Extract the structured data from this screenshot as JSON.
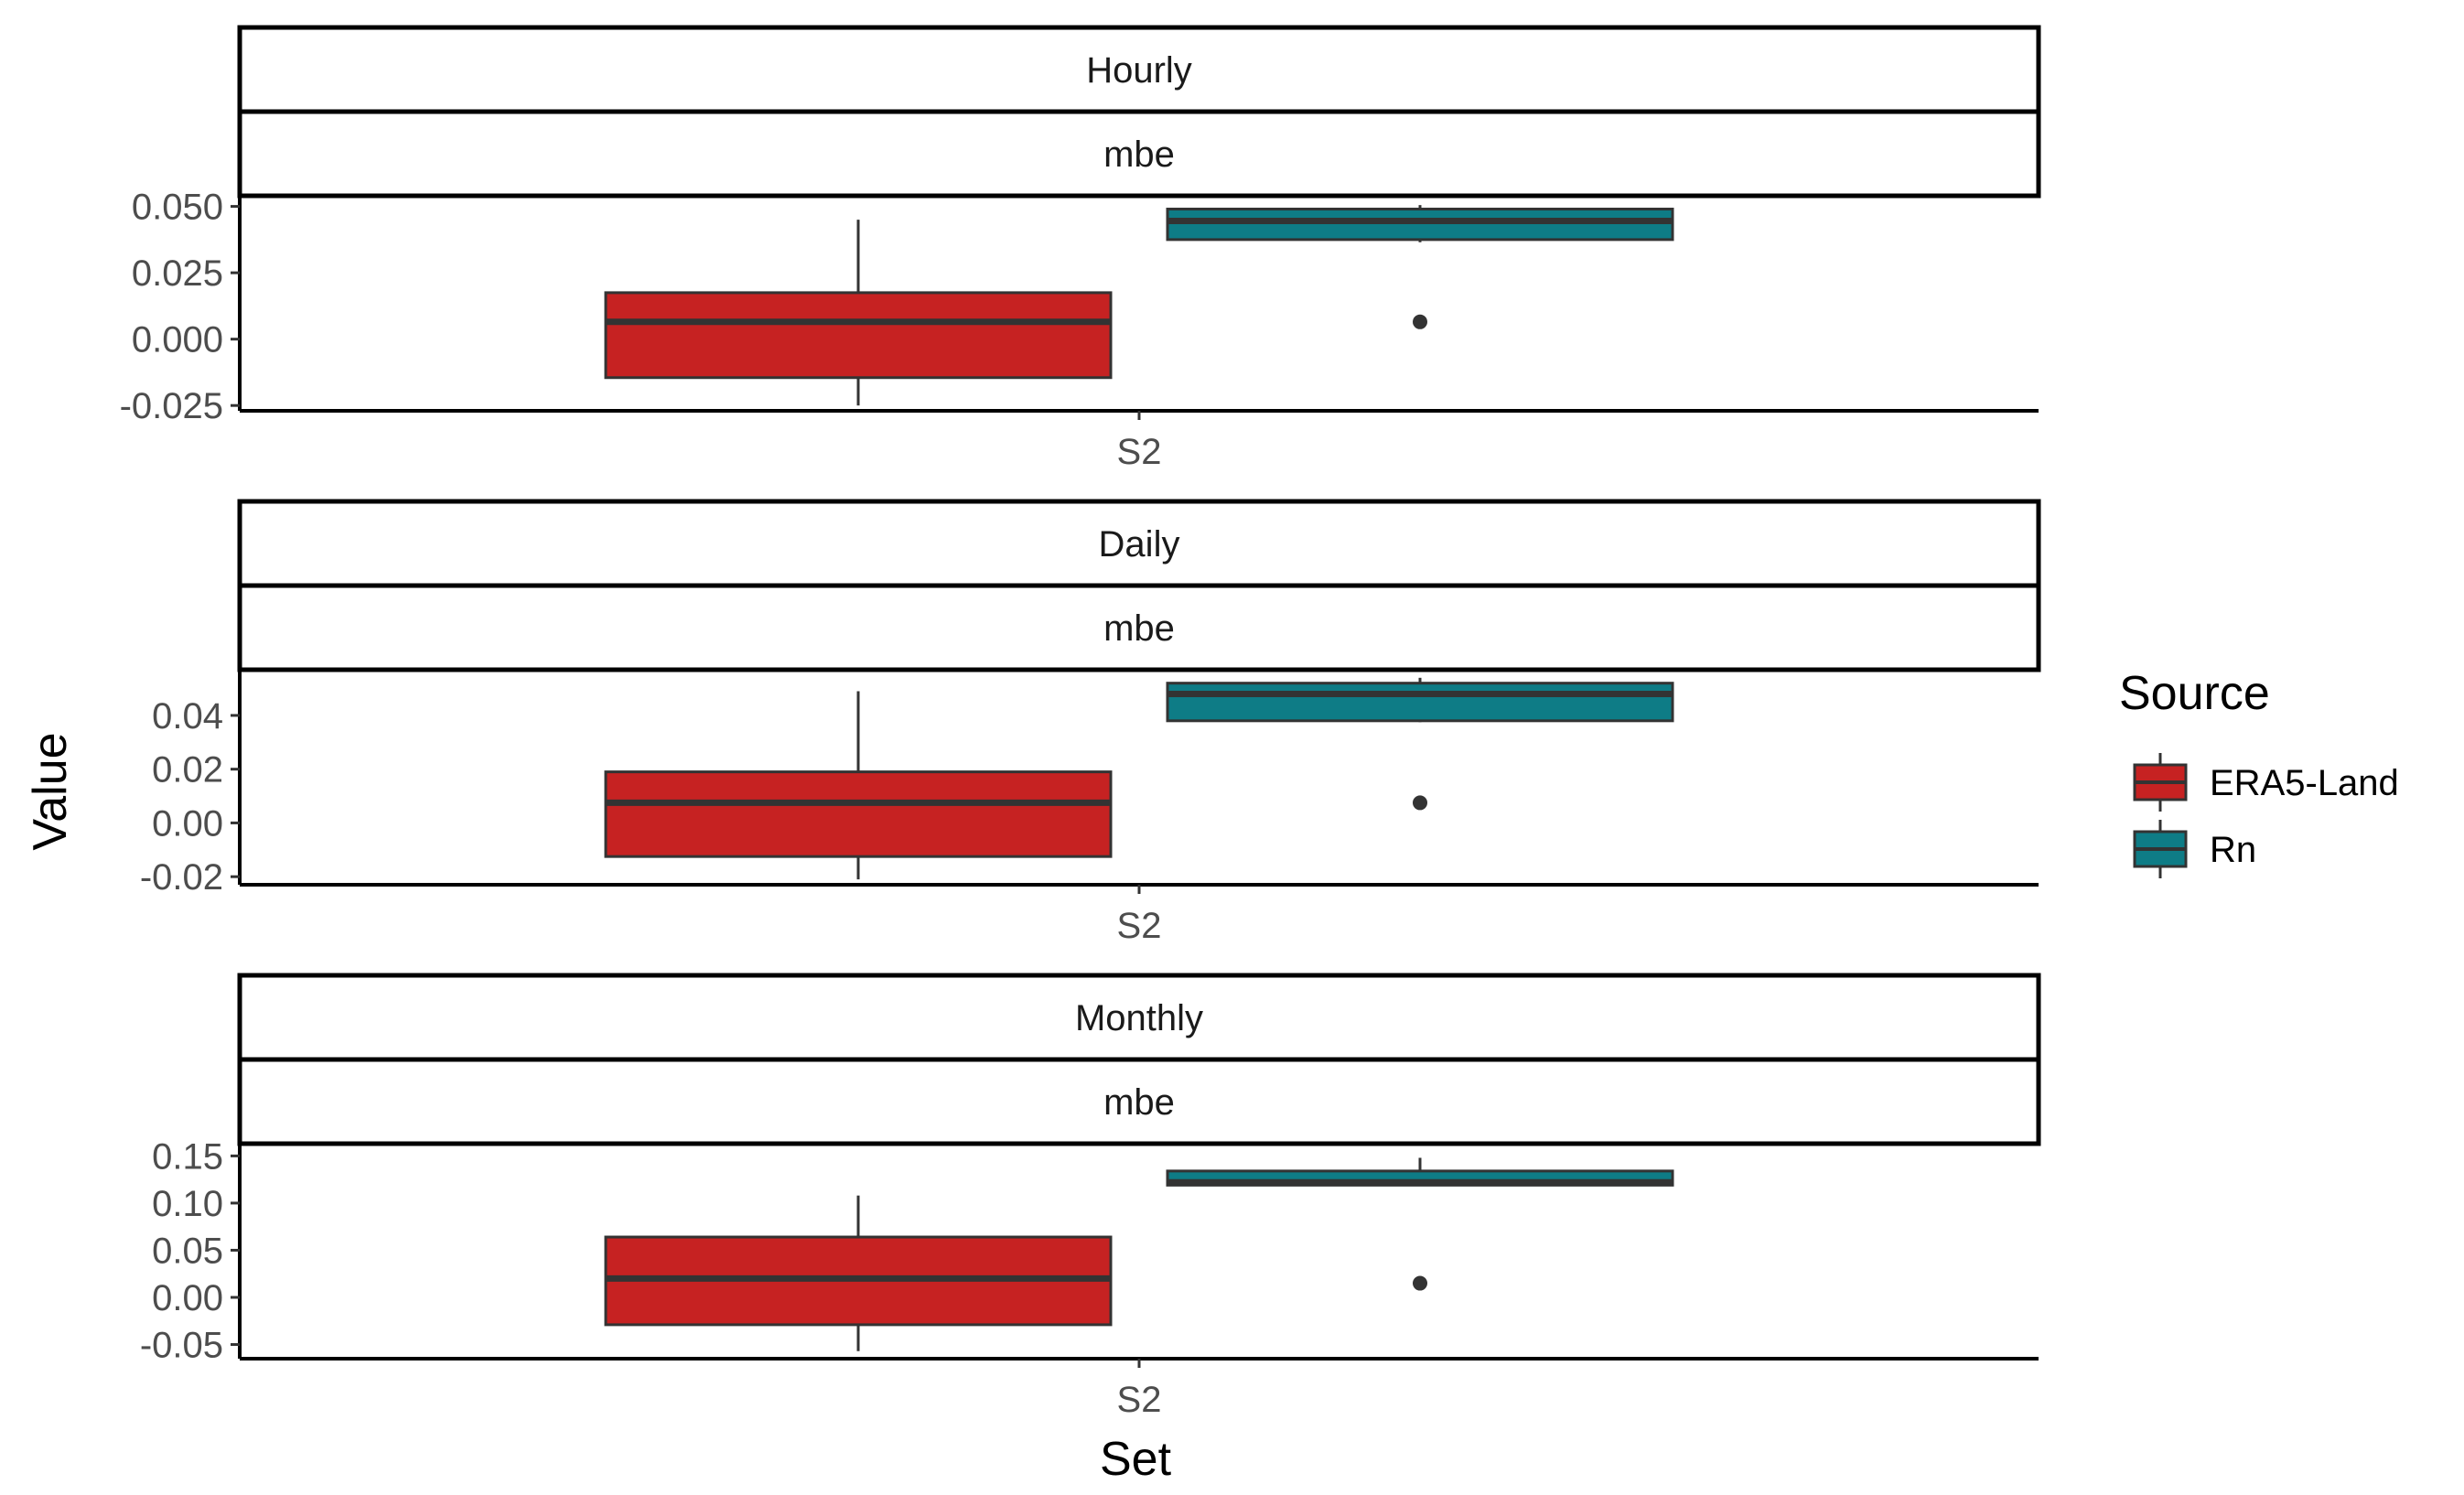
{
  "chart_data": {
    "type": "box",
    "xlabel": "Set",
    "ylabel": "Value",
    "legend": {
      "title": "Source",
      "position": "right",
      "entries": [
        {
          "name": "ERA5-Land",
          "color": "#C62222"
        },
        {
          "name": "Rn",
          "color": "#0E7C86"
        }
      ]
    },
    "panels": [
      {
        "strip_top": "Hourly",
        "strip_bottom": "mbe",
        "category": "S2",
        "ylim": [
          -0.027,
          0.054
        ],
        "yticks": [
          -0.025,
          0.0,
          0.025,
          0.05
        ],
        "ytick_labels": [
          "-0.025",
          "0.000",
          "0.025",
          "0.050"
        ],
        "boxes": [
          {
            "series": "ERA5-Land",
            "whisker_low": -0.025,
            "q1": -0.0145,
            "median": 0.0065,
            "q3": 0.0175,
            "whisker_high": 0.045,
            "outliers": []
          },
          {
            "series": "Rn",
            "whisker_low": 0.0365,
            "q1": 0.0375,
            "median": 0.0445,
            "q3": 0.049,
            "whisker_high": 0.0505,
            "outliers": [
              0.0065
            ]
          }
        ]
      },
      {
        "strip_top": "Daily",
        "strip_bottom": "mbe",
        "category": "S2",
        "ylim": [
          -0.023,
          0.057
        ],
        "yticks": [
          -0.02,
          0.0,
          0.02,
          0.04
        ],
        "ytick_labels": [
          "-0.02",
          "0.00",
          "0.02",
          "0.04"
        ],
        "boxes": [
          {
            "series": "ERA5-Land",
            "whisker_low": -0.021,
            "q1": -0.0125,
            "median": 0.0075,
            "q3": 0.019,
            "whisker_high": 0.049,
            "outliers": []
          },
          {
            "series": "Rn",
            "whisker_low": 0.0375,
            "q1": 0.038,
            "median": 0.048,
            "q3": 0.052,
            "whisker_high": 0.054,
            "outliers": [
              0.0075
            ]
          }
        ]
      },
      {
        "strip_top": "Monthly",
        "strip_bottom": "mbe",
        "category": "S2",
        "ylim": [
          -0.065,
          0.163
        ],
        "yticks": [
          -0.05,
          0.0,
          0.05,
          0.1,
          0.15
        ],
        "ytick_labels": [
          "-0.05",
          "0.00",
          "0.05",
          "0.10",
          "0.15"
        ],
        "boxes": [
          {
            "series": "ERA5-Land",
            "whisker_low": -0.057,
            "q1": -0.029,
            "median": 0.02,
            "q3": 0.064,
            "whisker_high": 0.108,
            "outliers": []
          },
          {
            "series": "Rn",
            "whisker_low": 0.119,
            "q1": 0.119,
            "median": 0.122,
            "q3": 0.134,
            "whisker_high": 0.148,
            "outliers": [
              0.015
            ]
          }
        ]
      }
    ]
  }
}
